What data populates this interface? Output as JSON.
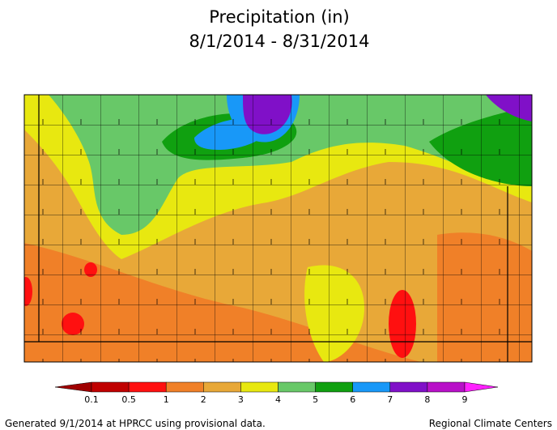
{
  "title": "Precipitation (in)",
  "subtitle": "8/1/2014 - 8/31/2014",
  "legend": {
    "ticks": [
      0.1,
      0.5,
      1,
      2,
      3,
      4,
      5,
      6,
      7,
      8,
      9
    ],
    "colors": [
      "#a00000",
      "#c00000",
      "#ff1010",
      "#f08028",
      "#e8a838",
      "#e8e810",
      "#68c868",
      "#10a010",
      "#1898f8",
      "#8010c8",
      "#b810c8",
      "#ff20ff"
    ]
  },
  "footer": {
    "left": "Generated 9/1/2014 at HPRCC using provisional data.",
    "right": "Regional Climate Centers"
  }
}
